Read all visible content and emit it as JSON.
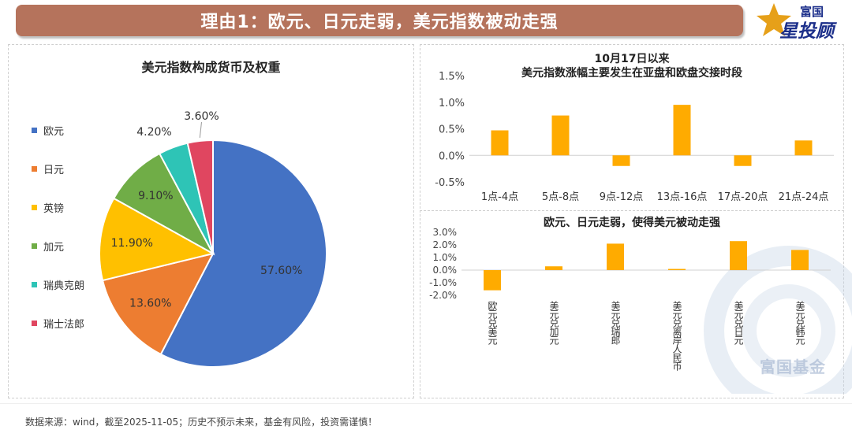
{
  "header": {
    "title": "理由1：欧元、日元走弱，美元指数被动走强"
  },
  "logo": {
    "line1": "富国",
    "line2": "星投顾"
  },
  "watermark": {
    "text": "富国基金"
  },
  "footer": {
    "note": "数据来源：wind，截至2025-11-05；历史不预示未来，基金有风险，投资需谨慎！"
  },
  "colors": {
    "banner": "#b5735c",
    "bar": "#ffab00",
    "euro": "#4472c4",
    "yen": "#ed7d31",
    "gbp": "#ffc000",
    "cad": "#70ad47",
    "sek": "#2ec4b6",
    "chf": "#e04660"
  },
  "chart_data": [
    {
      "type": "pie",
      "title": "美元指数构成货币及权重",
      "legend_position": "left",
      "slices": [
        {
          "label": "欧元",
          "value": 57.6,
          "value_label": "57.60%",
          "color": "#4472c4"
        },
        {
          "label": "日元",
          "value": 13.6,
          "value_label": "13.60%",
          "color": "#ed7d31"
        },
        {
          "label": "英镑",
          "value": 11.9,
          "value_label": "11.90%",
          "color": "#ffc000"
        },
        {
          "label": "加元",
          "value": 9.1,
          "value_label": "9.10%",
          "color": "#70ad47"
        },
        {
          "label": "瑞典克朗",
          "value": 4.2,
          "value_label": "4.20%",
          "color": "#2ec4b6"
        },
        {
          "label": "瑞士法郎",
          "value": 3.6,
          "value_label": "3.60%",
          "color": "#e04660"
        }
      ]
    },
    {
      "type": "bar",
      "title_lines": [
        "10月17日以来",
        "美元指数涨幅主要发生在亚盘和欧盘交接时段"
      ],
      "categories": [
        "1点-4点",
        "5点-8点",
        "9点-12点",
        "13点-16点",
        "17点-20点",
        "21点-24点"
      ],
      "values": [
        0.47,
        0.75,
        -0.2,
        0.95,
        -0.2,
        0.28
      ],
      "ylim": [
        -0.5,
        1.5
      ],
      "yticks": [
        -0.5,
        0.0,
        0.5,
        1.0,
        1.5
      ],
      "ytick_labels": [
        "-0.5%",
        "0.0%",
        "0.5%",
        "1.0%",
        "1.5%"
      ],
      "grid": false
    },
    {
      "type": "bar",
      "title": "欧元、日元走弱，使得美元被动走强",
      "categories": [
        "欧元兑美元",
        "美元兑加元",
        "美元兑瑞郎",
        "美元兑离岸人民币",
        "美元兑日元",
        "美元兑韩元"
      ],
      "values": [
        -1.6,
        0.3,
        2.1,
        0.05,
        2.3,
        1.6
      ],
      "ylim": [
        -2.0,
        3.0
      ],
      "yticks": [
        -2.0,
        -1.0,
        0.0,
        1.0,
        2.0,
        3.0
      ],
      "ytick_labels": [
        "-2.0%",
        "-1.0%",
        "0.0%",
        "1.0%",
        "2.0%",
        "3.0%"
      ],
      "grid": false
    }
  ]
}
